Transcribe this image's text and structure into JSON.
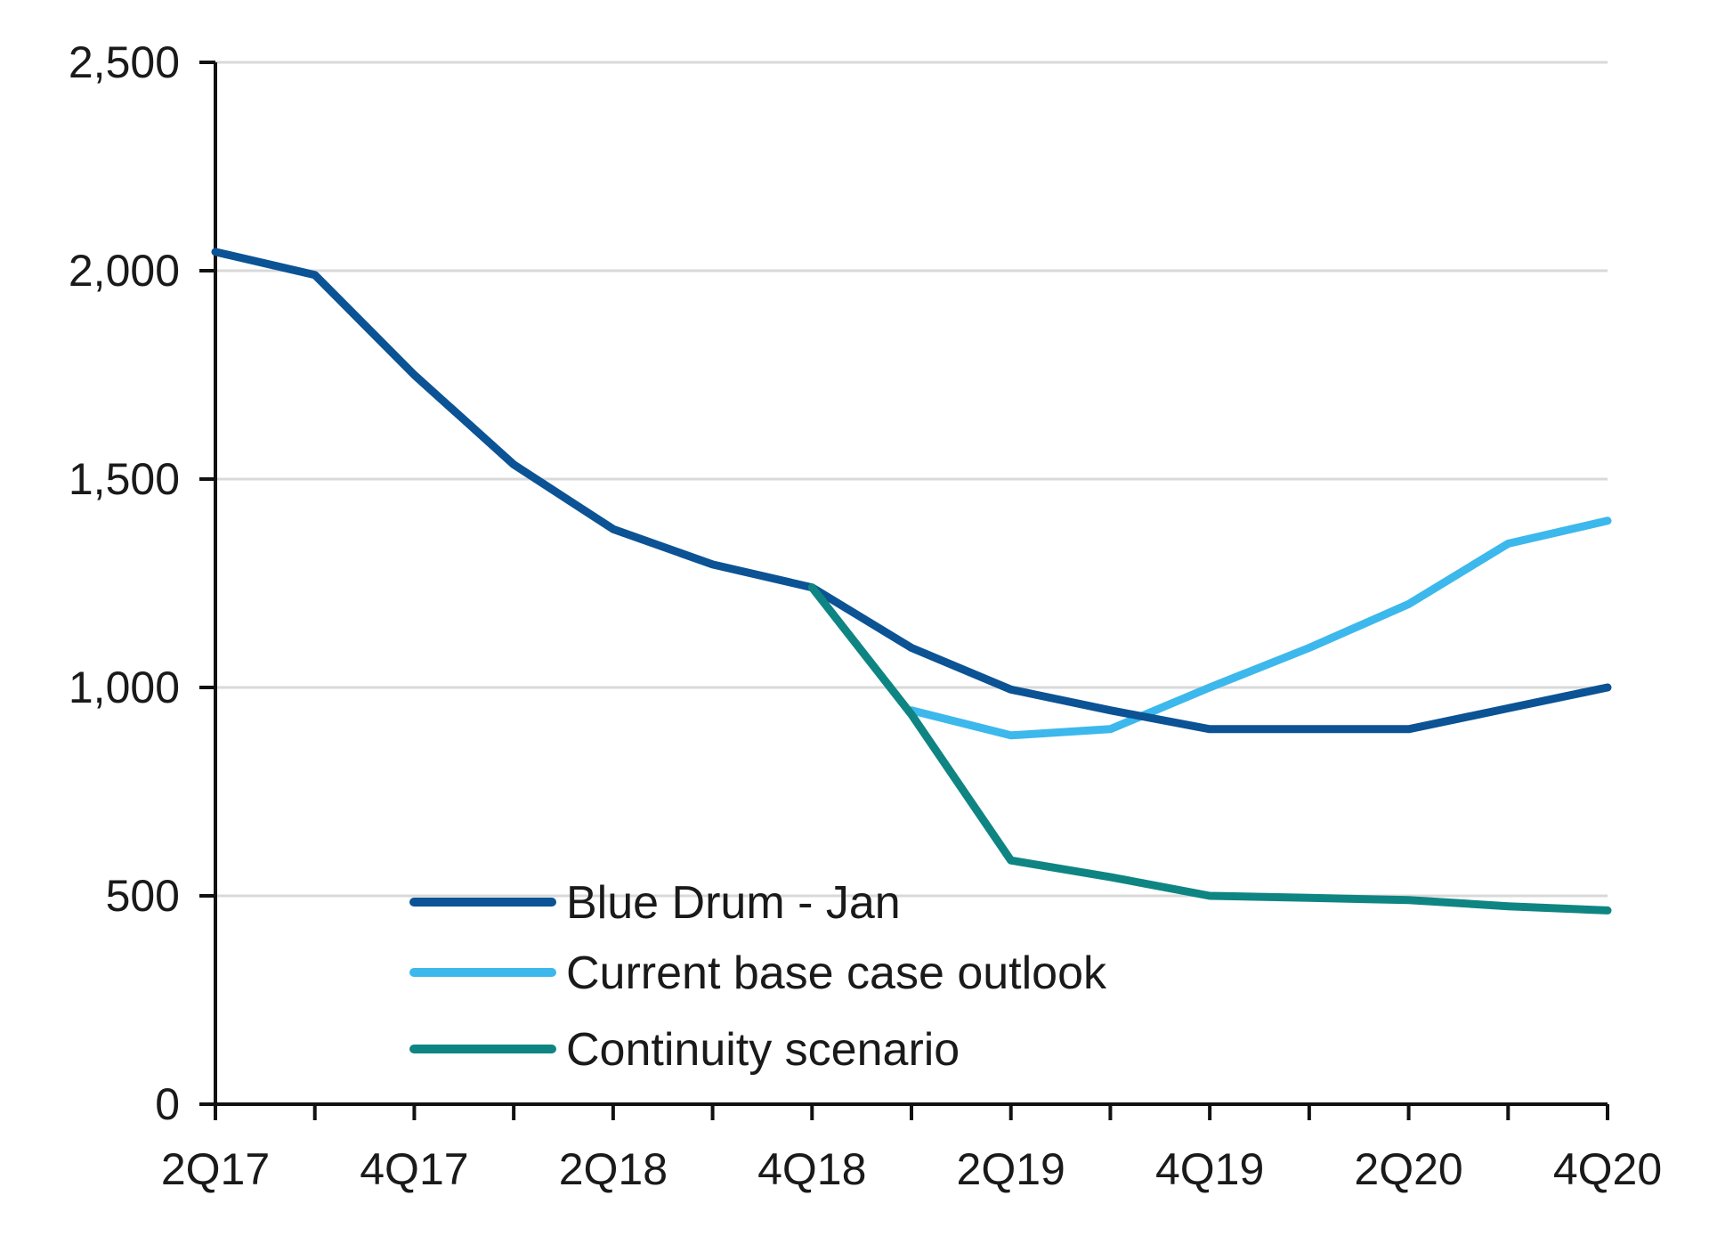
{
  "chart_data": {
    "type": "line",
    "title": "",
    "xlabel": "",
    "ylabel": "",
    "ylim": [
      0,
      2500
    ],
    "yticks": [
      0,
      500,
      1000,
      1500,
      2000,
      2500
    ],
    "ytick_labels": [
      "0",
      "500",
      "1,000",
      "1,500",
      "2,000",
      "2,500"
    ],
    "categories": [
      "2Q17",
      "3Q17",
      "4Q17",
      "1Q18",
      "2Q18",
      "3Q18",
      "4Q18",
      "1Q19",
      "2Q19",
      "3Q19",
      "4Q19",
      "1Q20",
      "2Q20",
      "3Q20",
      "4Q20"
    ],
    "xtick_labels": [
      "2Q17",
      "",
      "4Q17",
      "",
      "2Q18",
      "",
      "4Q18",
      "",
      "2Q19",
      "",
      "4Q19",
      "",
      "2Q20",
      "",
      "4Q20"
    ],
    "grid": true,
    "legend_position": "bottom-center",
    "series": [
      {
        "name": "Blue Drum - Jan",
        "color": "#0b5394",
        "values": [
          2045,
          1990,
          1750,
          1535,
          1380,
          1295,
          1240,
          1095,
          995,
          945,
          900,
          900,
          900,
          950,
          1000
        ]
      },
      {
        "name": "Current base case outlook",
        "color": "#3cb8ec",
        "values": [
          null,
          null,
          null,
          null,
          null,
          null,
          null,
          945,
          885,
          900,
          1000,
          1095,
          1200,
          1345,
          1400
        ]
      },
      {
        "name": "Continuity scenario",
        "color": "#0f8583",
        "values": [
          null,
          null,
          null,
          null,
          null,
          null,
          1240,
          935,
          585,
          545,
          500,
          495,
          490,
          475,
          465
        ]
      }
    ]
  }
}
